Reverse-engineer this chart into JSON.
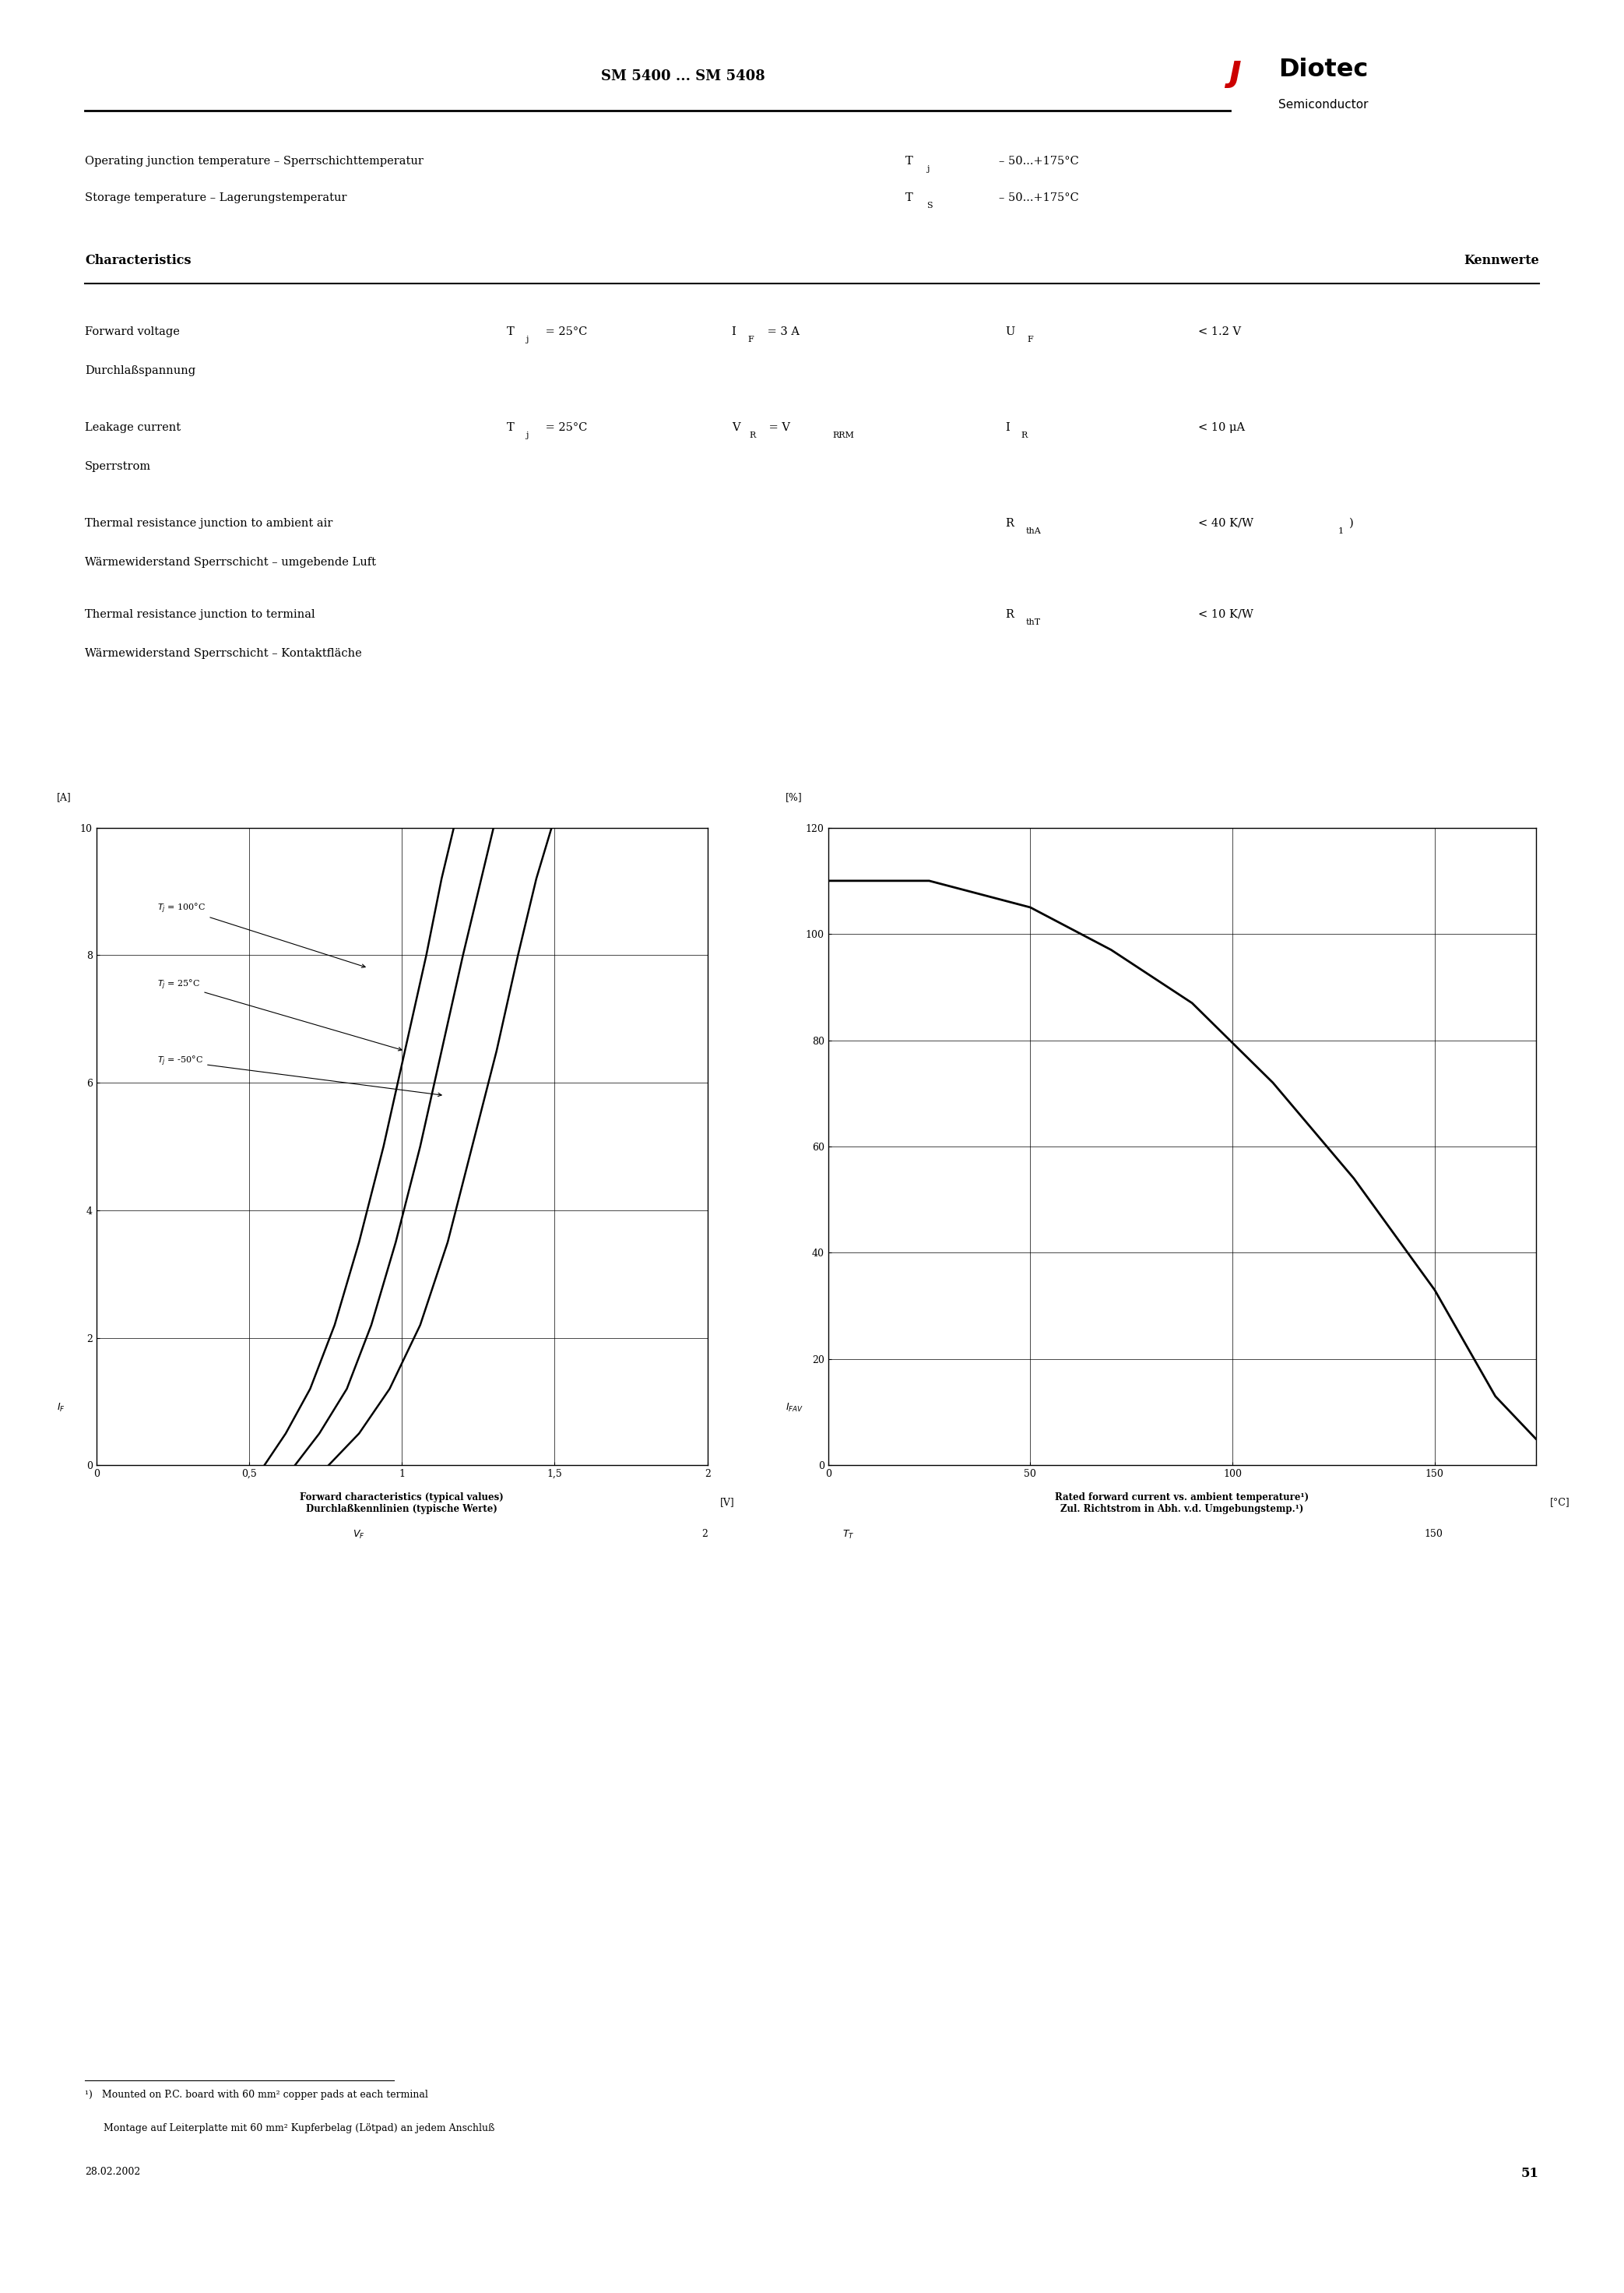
{
  "title": "SM 5400 ... SM 5408",
  "company": "Diotec",
  "company_sub": "Semiconductor",
  "bg_color": "#ffffff",
  "text_color": "#000000",
  "date": "28.02.2002",
  "page": "51",
  "footnote1": "1)   Mounted on P.C. board with 60 mm2 copper pads at each terminal",
  "footnote2": "      Montage auf Leiterplatte mit 60 mm2 Kupferbelag (Lötpad) an jedem Anschluß",
  "graph1": {
    "title1": "Forward characteristics (typical values)",
    "title2": "Durchlaßkennlinien (typische Werte)",
    "xlim": [
      0,
      2
    ],
    "ylim": [
      0,
      10
    ],
    "xticks": [
      0,
      0.5,
      1,
      1.5,
      2
    ],
    "yticks": [
      0,
      2,
      4,
      6,
      8,
      10
    ],
    "xtick_labels": [
      "0",
      "0,5",
      "1",
      "1,5",
      "2"
    ],
    "curve_y": [
      0,
      0.5,
      1.2,
      2.2,
      3.5,
      5.0,
      6.5,
      8.0,
      9.2,
      10.0
    ],
    "curve_x_100": [
      0.55,
      0.62,
      0.7,
      0.78,
      0.86,
      0.94,
      1.01,
      1.08,
      1.13,
      1.17
    ],
    "curve_x_25": [
      0.65,
      0.73,
      0.82,
      0.9,
      0.98,
      1.06,
      1.13,
      1.2,
      1.26,
      1.3
    ],
    "curve_x_m50": [
      0.76,
      0.86,
      0.96,
      1.06,
      1.15,
      1.23,
      1.31,
      1.38,
      1.44,
      1.49
    ],
    "label_100": "T j = 100°C",
    "label_25": "T j = 25°C",
    "label_m50": "T j = -50°C"
  },
  "graph2": {
    "title1": "Rated forward current vs. ambient temperature1)",
    "title2": "Zul. Richtstrom in Abh. v.d. Umgebungstemp.1)",
    "xlim": [
      0,
      175
    ],
    "ylim": [
      0,
      120
    ],
    "xticks": [
      0,
      50,
      100,
      150
    ],
    "yticks": [
      0,
      20,
      40,
      60,
      80,
      100,
      120
    ],
    "curve_x": [
      0,
      25,
      50,
      70,
      90,
      110,
      130,
      150,
      165,
      175
    ],
    "curve_y": [
      110,
      110,
      105,
      97,
      87,
      72,
      54,
      33,
      13,
      5
    ]
  }
}
